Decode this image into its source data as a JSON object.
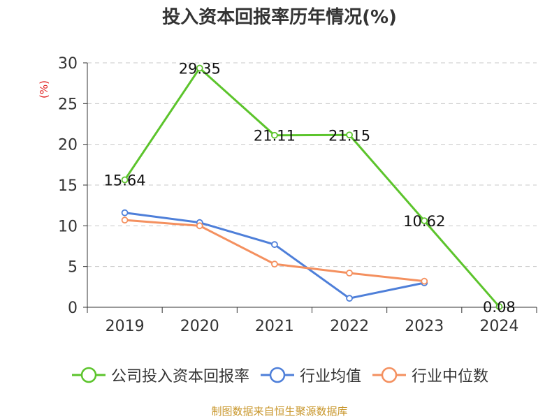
{
  "chart_data": {
    "type": "line",
    "title": "投入资本回报率历年情况(%)",
    "ylabel": "(%)",
    "xlabel": "",
    "categories": [
      "2019",
      "2020",
      "2021",
      "2022",
      "2023",
      "2024"
    ],
    "ylim": [
      0,
      30
    ],
    "yticks": [
      0,
      5,
      10,
      15,
      20,
      25,
      30
    ],
    "grid": "horizontal dashed",
    "legend_position": "bottom",
    "series": [
      {
        "name": "公司投入资本回报率",
        "color": "#5cc42c",
        "values": [
          15.64,
          29.35,
          21.11,
          21.15,
          10.62,
          0.08
        ],
        "labels": [
          "15.64",
          "29.35",
          "21.11",
          "21.15",
          "10.62",
          "0.08"
        ]
      },
      {
        "name": "行业均值",
        "color": "#4e7fd9",
        "values": [
          11.6,
          10.4,
          7.7,
          1.1,
          3.0,
          null
        ]
      },
      {
        "name": "行业中位数",
        "color": "#f4905f",
        "values": [
          10.7,
          10.0,
          5.3,
          4.2,
          3.2,
          null
        ]
      }
    ]
  },
  "footer": {
    "source": "制图数据来自恒生聚源数据库"
  }
}
